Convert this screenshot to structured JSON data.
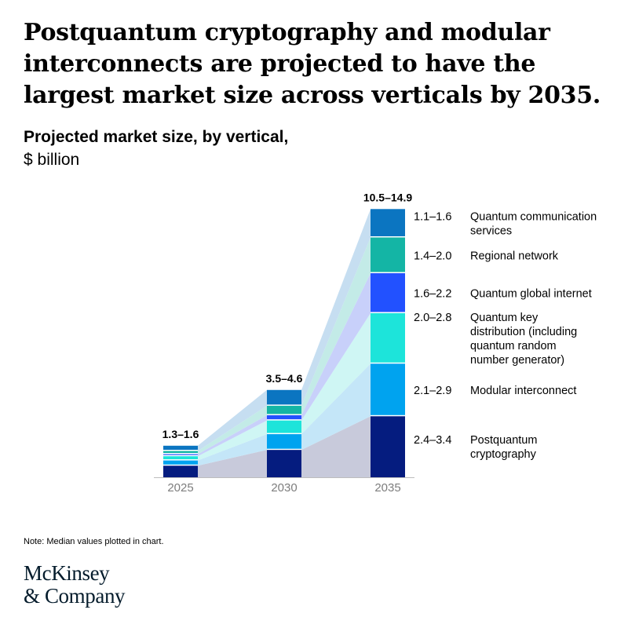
{
  "title": "Postquantum cryptography and modular interconnects are projected to have the largest market size across verticals by 2035.",
  "subtitle": {
    "bold": "Projected market size, by vertical,",
    "unit": " $ billion"
  },
  "note": "Note: Median values plotted in chart.",
  "logo": {
    "line1": "McKinsey",
    "line2": "& Company"
  },
  "chart_data": {
    "type": "bar",
    "stacked": true,
    "categories": [
      "2025",
      "2030",
      "2035"
    ],
    "total_labels": [
      "1.3–1.6",
      "3.5–4.6",
      "10.5–14.9"
    ],
    "series": [
      {
        "name": "Postquantum cryptography",
        "values": [
          0.55,
          1.3,
          2.9
        ],
        "range_2035": "2.4–3.4",
        "color": "#051c7f",
        "band_color": "#c8cadb"
      },
      {
        "name": "Modular interconnect",
        "values": [
          0.25,
          0.75,
          2.5
        ],
        "range_2035": "2.1–2.9",
        "color": "#00a3ef",
        "band_color": "#c4e6f8"
      },
      {
        "name": "Quantum key distribution (including quantum random number generator)",
        "values": [
          0.2,
          0.65,
          2.4
        ],
        "range_2035": "2.0–2.8",
        "color": "#1de4da",
        "band_color": "#cff6f4"
      },
      {
        "name": "Quantum global internet",
        "values": [
          0.1,
          0.25,
          1.9
        ],
        "range_2035": "1.6–2.2",
        "color": "#2251ff",
        "band_color": "#c8d0fa"
      },
      {
        "name": "Regional network",
        "values": [
          0.15,
          0.45,
          1.7
        ],
        "range_2035": "1.4–2.0",
        "color": "#14b5a5",
        "band_color": "#c3ebe7"
      },
      {
        "name": "Quantum communication services",
        "values": [
          0.25,
          0.75,
          1.35
        ],
        "range_2035": "1.1–1.6",
        "color": "#0b75c1",
        "band_color": "#c6def1"
      }
    ],
    "legend_labels": [
      [
        "Quantum communication",
        "services"
      ],
      [
        "Regional network"
      ],
      [
        "Quantum global internet"
      ],
      [
        "Quantum key",
        "distribution (including",
        "quantum random",
        "number generator)"
      ],
      [
        "Modular interconnect"
      ],
      [
        "Postquantum",
        "cryptography"
      ]
    ],
    "ylim": [
      0,
      15
    ],
    "grid": false,
    "legend": "right"
  }
}
